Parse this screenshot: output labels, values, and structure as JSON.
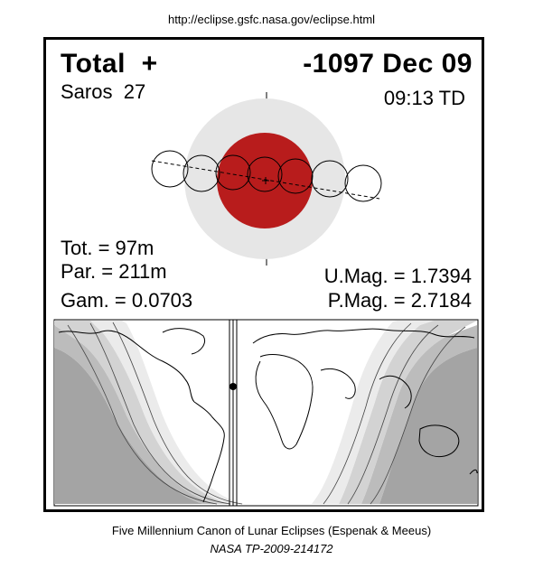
{
  "url": "http://eclipse.gsfc.nasa.gov/eclipse.html",
  "header": {
    "type": "Total",
    "symbol": "+",
    "date": "-1097 Dec 09",
    "saros_label": "Saros",
    "saros_num": "27",
    "time": "09:13 TD"
  },
  "stats": {
    "tot": "Tot. =  97m",
    "par": "Par. = 211m",
    "gam": "Gam. = 0.0703",
    "umag": "U.Mag. = 1.7394",
    "pmag": "P.Mag. = 2.7184"
  },
  "colors": {
    "penumbra": "#e6e6e6",
    "umbra": "#b81c1c",
    "map_shade_1": "#ebebeb",
    "map_shade_2": "#d3d3d3",
    "map_shade_3": "#bcbcbc",
    "map_shade_4": "#a4a4a4"
  },
  "footer": {
    "line1": "Five Millennium Canon of Lunar Eclipses (Espenak & Meeus)",
    "line2": "NASA TP-2009-214172"
  }
}
